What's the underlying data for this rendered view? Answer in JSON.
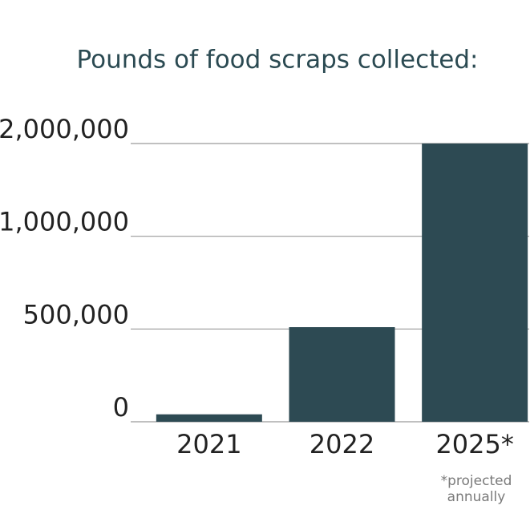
{
  "chart_data": {
    "type": "bar",
    "title": "Pounds of food scraps collected:",
    "categories": [
      "2021",
      "2022",
      "2025*"
    ],
    "values": [
      40000,
      510000,
      2000000
    ],
    "color": "#2d4a53",
    "ylim": [
      0,
      2000000
    ],
    "yticks": [
      0,
      {
        "value": 500000,
        "label": "500,000"
      },
      {
        "value": 1000000,
        "label": "1,000,000"
      },
      {
        "value": 2000000,
        "label": "2,000,000"
      }
    ],
    "grid": true,
    "note": "*projected annually"
  }
}
